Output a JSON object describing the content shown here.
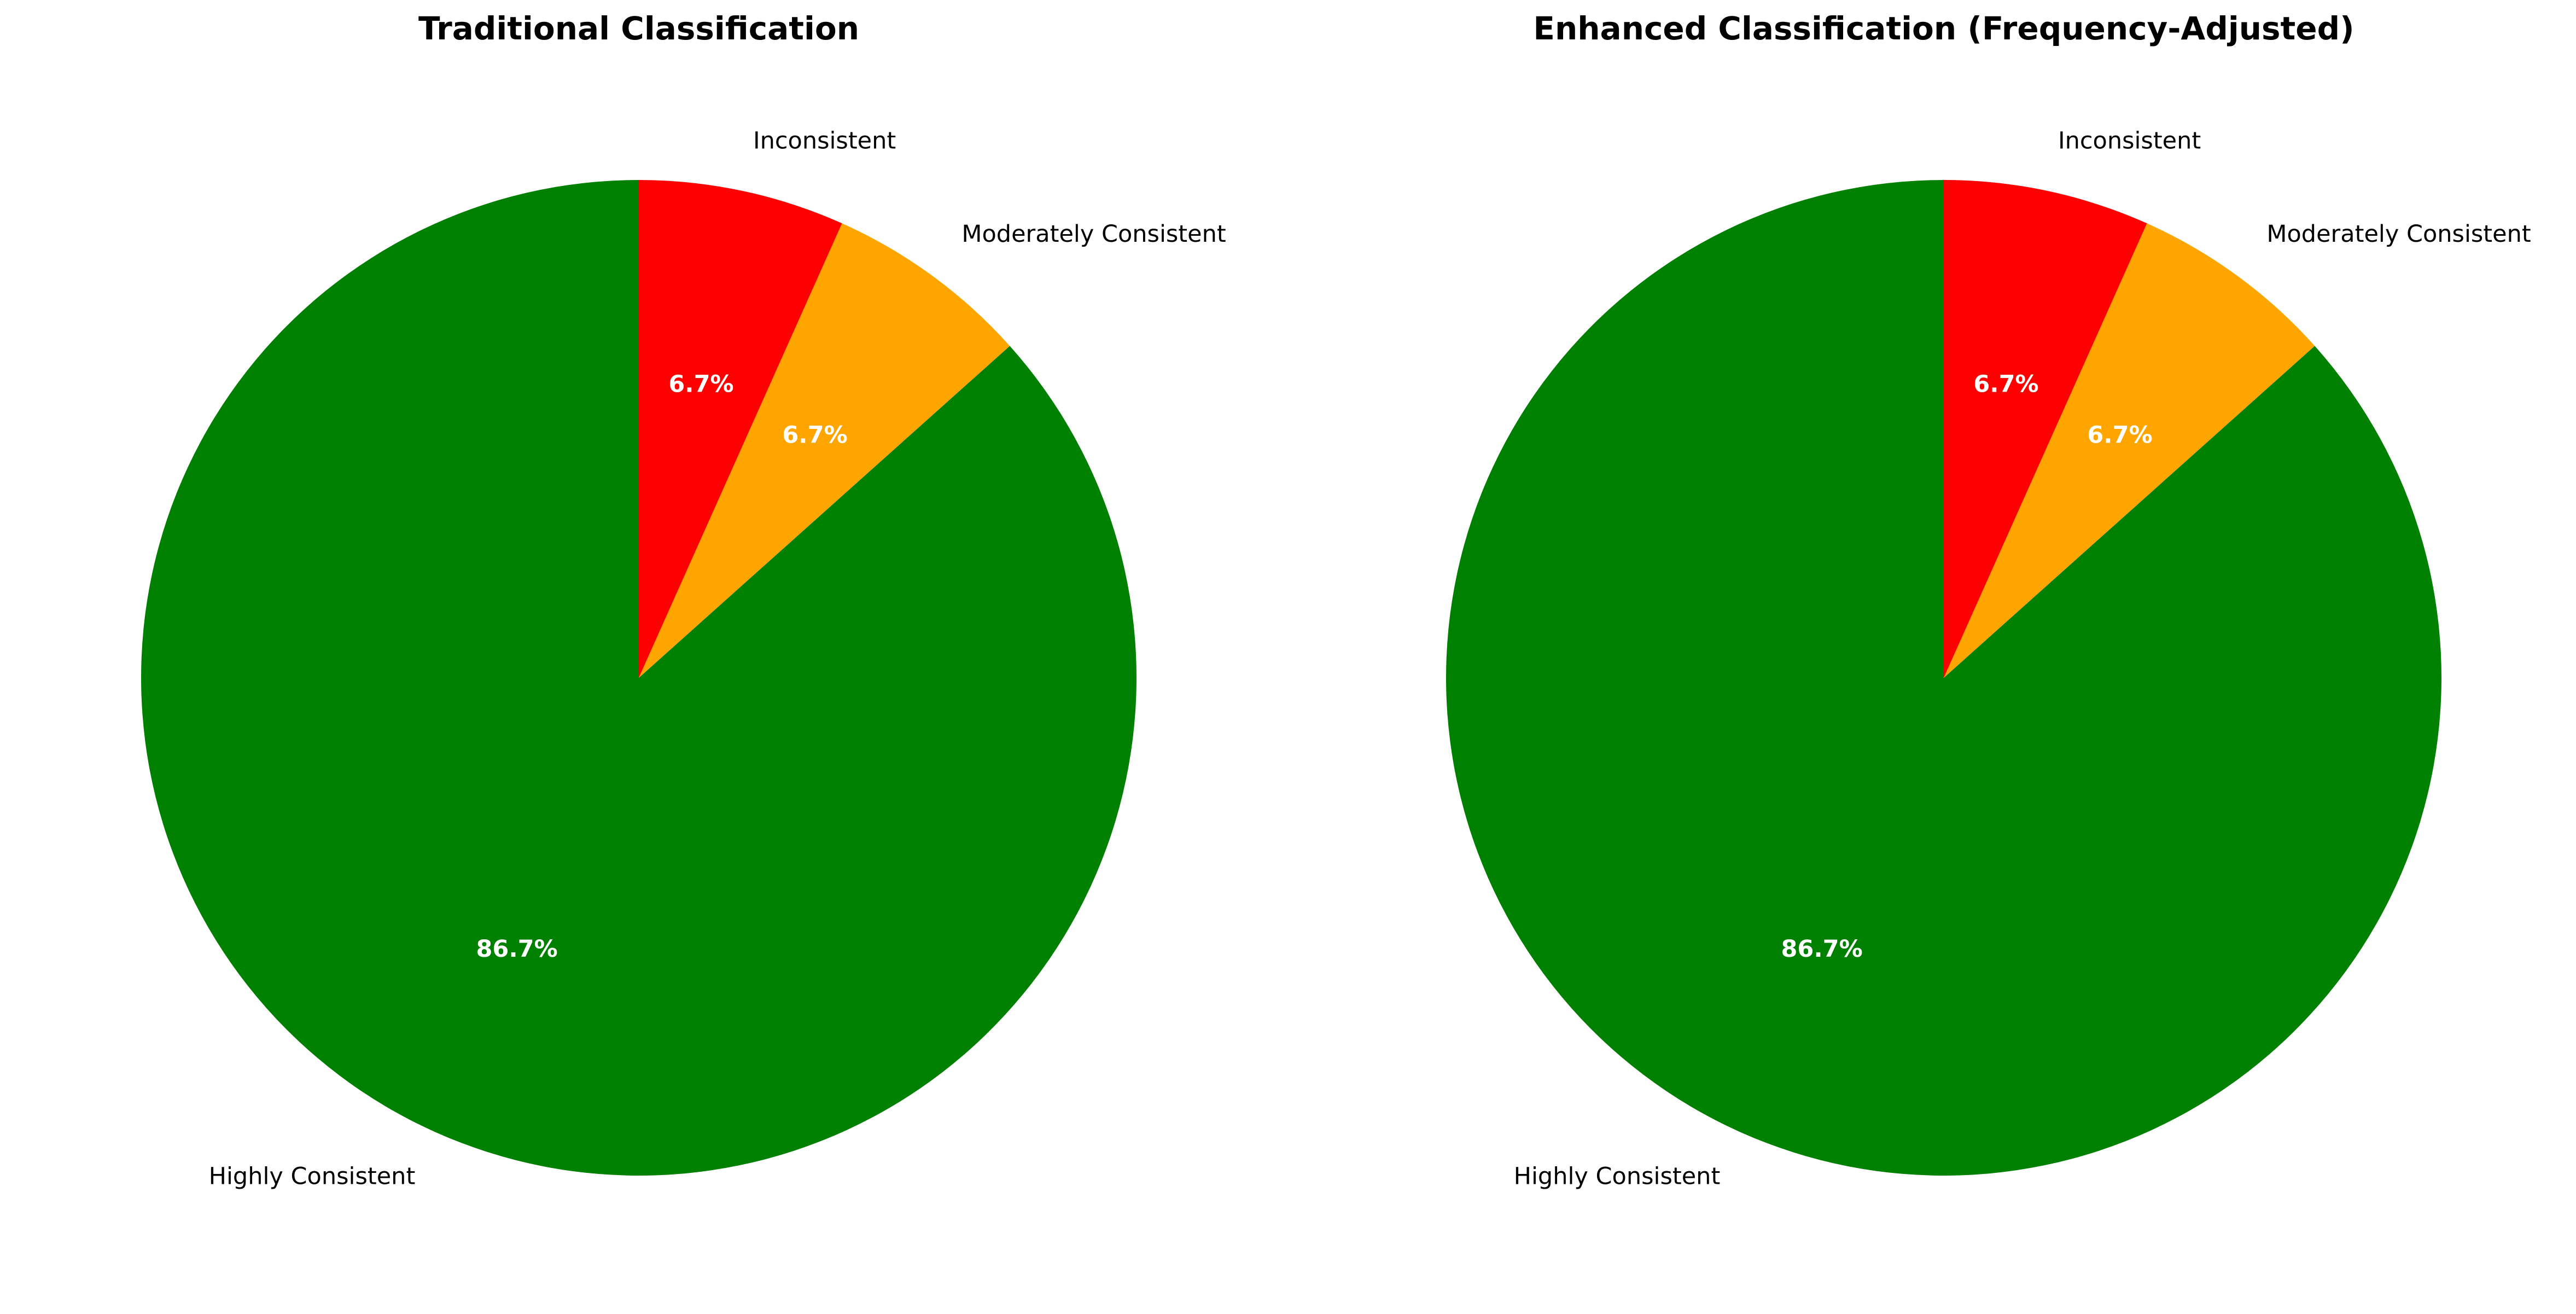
{
  "chart_data": [
    {
      "type": "pie",
      "title": "Traditional Classification",
      "start_angle_deg": 90,
      "direction": "counterclockwise",
      "slices": [
        {
          "label": "Highly Consistent",
          "value": 86.7,
          "pct_label": "86.7%",
          "color": "#008000"
        },
        {
          "label": "Moderately Consistent",
          "value": 6.7,
          "pct_label": "6.7%",
          "color": "#FFA500"
        },
        {
          "label": "Inconsistent",
          "value": 6.7,
          "pct_label": "6.7%",
          "color": "#FF0000"
        }
      ],
      "legend": "none"
    },
    {
      "type": "pie",
      "title": "Enhanced Classification (Frequency-Adjusted)",
      "start_angle_deg": 90,
      "direction": "counterclockwise",
      "slices": [
        {
          "label": "Highly Consistent",
          "value": 86.7,
          "pct_label": "86.7%",
          "color": "#008000"
        },
        {
          "label": "Moderately Consistent",
          "value": 6.7,
          "pct_label": "6.7%",
          "color": "#FFA500"
        },
        {
          "label": "Inconsistent",
          "value": 6.7,
          "pct_label": "6.7%",
          "color": "#FF0000"
        }
      ],
      "legend": "none"
    }
  ]
}
